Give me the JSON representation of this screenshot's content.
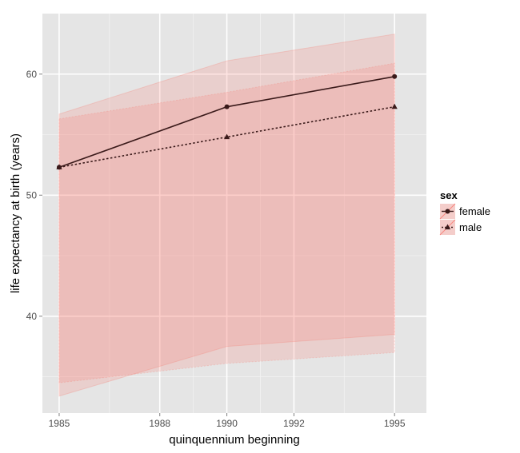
{
  "chart_data": {
    "type": "line",
    "title": "",
    "xlabel": "quinquennium beginning",
    "ylabel": "life expectancy at birth (years)",
    "x": [
      1985,
      1990,
      1995
    ],
    "xlim": [
      1984.5,
      1995.95
    ],
    "ylim": [
      32,
      65
    ],
    "xticks": [
      1985,
      1988,
      1990,
      1992,
      1995
    ],
    "xtick_labels": [
      "1985",
      "1988",
      "1990",
      "1992",
      "1995"
    ],
    "yticks": [
      40,
      50,
      60
    ],
    "ytick_labels": [
      "40",
      "50",
      "60"
    ],
    "grid": true,
    "legend": {
      "title": "sex",
      "position": "right"
    },
    "series": [
      {
        "name": "female",
        "values": [
          52.3,
          57.3,
          59.8
        ],
        "lower": [
          33.4,
          37.5,
          38.5
        ],
        "upper": [
          56.7,
          61.1,
          63.3
        ],
        "line_style": "solid",
        "marker": "circle"
      },
      {
        "name": "male",
        "values": [
          52.3,
          54.8,
          57.3
        ],
        "lower": [
          34.5,
          36.1,
          37.0
        ],
        "upper": [
          56.3,
          58.5,
          60.9
        ],
        "line_style": "dotted",
        "marker": "triangle"
      }
    ],
    "colors": {
      "panel": "#e5e5e5",
      "grid_major": "#ffffff",
      "grid_minor": "#f2f2f2",
      "ribbon": "#f8766d",
      "line": "#3a1a1a"
    }
  }
}
